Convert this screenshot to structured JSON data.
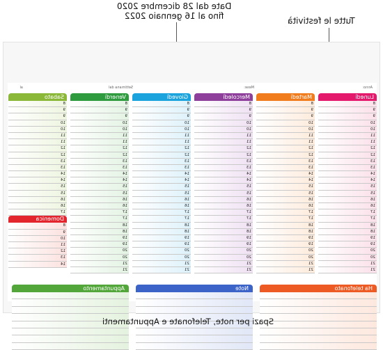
{
  "callouts": {
    "dates_line1": "Date dal 28 dicembre 2020",
    "dates_line2": "fino al 16 gennaio 2022",
    "holidays": "Tutte  le festività",
    "bottom": "Spazi per note, Telefonate e Appuntamenti"
  },
  "header": {
    "anno_label": "Anno:",
    "mese_label": "Mese:",
    "settimana_label": "Settimana dal",
    "al_label": "al"
  },
  "days": [
    {
      "label": "Lunedì",
      "color": "#e5196b",
      "tint": "#fbe0ea",
      "numbers": [
        "8",
        "9",
        "9",
        "10",
        "10",
        "11",
        "11",
        "12",
        "12",
        "13",
        "13",
        "14",
        "14",
        "15",
        "15",
        "16",
        "16",
        "17",
        "17",
        "18",
        "18",
        "19",
        "19",
        "20",
        "20",
        "21",
        "21"
      ]
    },
    {
      "label": "Martedì",
      "color": "#f07c1e",
      "tint": "#fdebdc",
      "numbers": [
        "8",
        "9",
        "9",
        "10",
        "10",
        "11",
        "11",
        "12",
        "12",
        "13",
        "13",
        "14",
        "14",
        "15",
        "15",
        "16",
        "16",
        "17",
        "17",
        "18",
        "18",
        "19",
        "19",
        "20",
        "20",
        "21",
        "21"
      ]
    },
    {
      "label": "Mercoledì",
      "color": "#8e3e9b",
      "tint": "#efe0f2",
      "numbers": [
        "8",
        "9",
        "9",
        "10",
        "10",
        "11",
        "11",
        "12",
        "12",
        "13",
        "13",
        "14",
        "14",
        "15",
        "15",
        "16",
        "16",
        "17",
        "17",
        "18",
        "18",
        "19",
        "19",
        "20",
        "20",
        "21",
        "21"
      ]
    },
    {
      "label": "Giovedì",
      "color": "#1aa3dc",
      "tint": "#ddf1fa",
      "numbers": [
        "8",
        "9",
        "9",
        "10",
        "10",
        "11",
        "11",
        "12",
        "12",
        "13",
        "13",
        "14",
        "14",
        "15",
        "15",
        "16",
        "16",
        "17",
        "17",
        "18",
        "18",
        "19",
        "19",
        "20",
        "20",
        "21",
        "21"
      ]
    },
    {
      "label": "Venerdì",
      "color": "#2e9b3e",
      "tint": "#e3f3e3",
      "numbers": [
        "8",
        "9",
        "9",
        "10",
        "10",
        "11",
        "11",
        "12",
        "12",
        "13",
        "13",
        "14",
        "14",
        "15",
        "15",
        "16",
        "16",
        "17",
        "17",
        "18",
        "18",
        "19",
        "19",
        "20",
        "20",
        "21",
        "21"
      ]
    },
    {
      "label": "Sabato",
      "color": "#8cb83a",
      "tint": "#eef5e0",
      "numbers": [
        "8",
        "9",
        "9",
        "10",
        "10",
        "11",
        "11",
        "12",
        "12",
        "13",
        "13",
        "14",
        "14",
        "15",
        "15",
        "16",
        "16",
        "17"
      ]
    }
  ],
  "sunday": {
    "label": "Domenica",
    "color": "#e3262e",
    "tint": "#fbe1df",
    "numbers": [
      "8",
      "9",
      "10",
      "11",
      "12",
      "13",
      "14"
    ]
  },
  "boxes": [
    {
      "label": "Ha telefonato",
      "color": "#ee5a24",
      "tint": "#fde8de"
    },
    {
      "label": "Note",
      "color": "#3b63c8",
      "tint": "#e1e7f7"
    },
    {
      "label": "Appuntamento",
      "color": "#52a63a",
      "tint": "#e5f2df"
    }
  ]
}
